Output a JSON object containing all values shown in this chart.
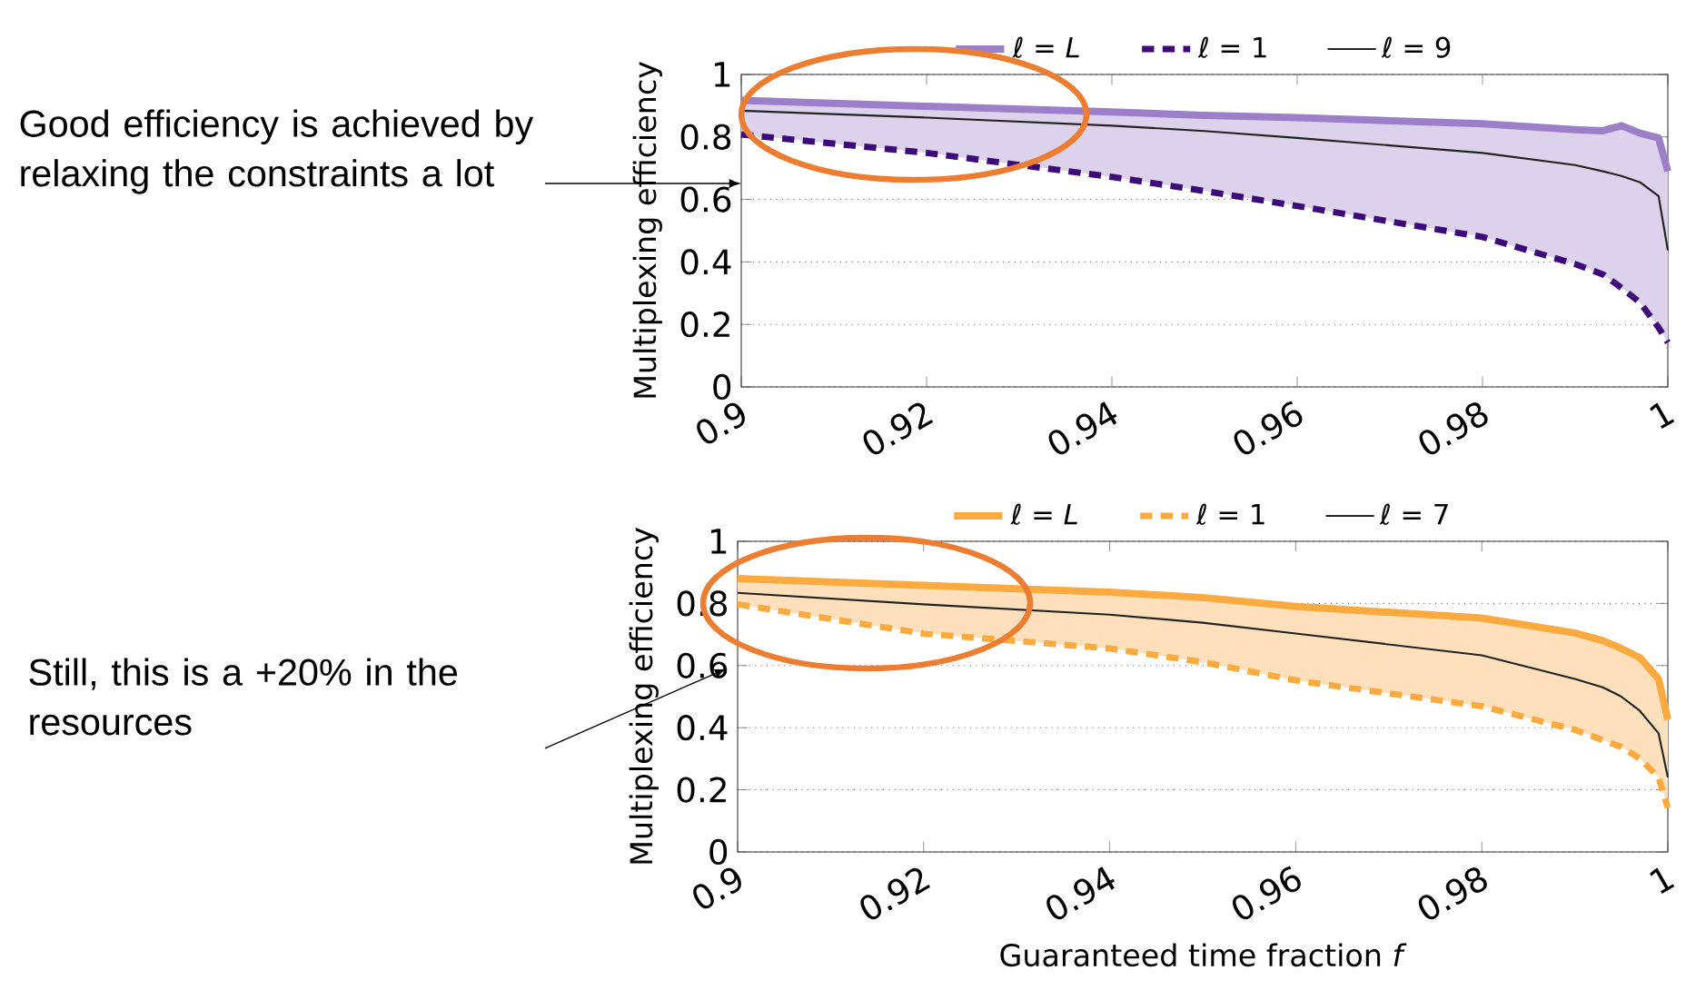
{
  "chart_data": [
    {
      "type": "line",
      "ylabel": "Multiplexing efficiency",
      "xlim": [
        0.9,
        1
      ],
      "ylim": [
        0,
        1
      ],
      "xticks": [
        0.9,
        0.92,
        0.94,
        0.96,
        0.98,
        1
      ],
      "yticks": [
        0,
        0.2,
        0.4,
        0.6,
        0.8,
        1
      ],
      "grid": "y",
      "legend": "top",
      "x": [
        0.9,
        0.92,
        0.94,
        0.95,
        0.96,
        0.98,
        0.99,
        0.993,
        0.995,
        0.997,
        0.999,
        1
      ],
      "series": [
        {
          "name": "ℓ = *L*",
          "color": "#9b7fc8",
          "line_style": "solid",
          "values": [
            0.917,
            0.898,
            0.88,
            0.869,
            0.862,
            0.842,
            0.823,
            0.82,
            0.836,
            0.812,
            0.797,
            0.69
          ],
          "upper": [
            0.917,
            0.898,
            0.88,
            0.869,
            0.862,
            0.842,
            0.823,
            0.82,
            0.836,
            0.812,
            0.797,
            0.69
          ],
          "lower": [
            0.808,
            0.749,
            0.672,
            0.627,
            0.579,
            0.48,
            0.393,
            0.36,
            0.317,
            0.27,
            0.19,
            0.142
          ]
        },
        {
          "name": "ℓ = 1",
          "color": "#3d0a7a",
          "line_style": "dashed",
          "values": [
            0.808,
            0.749,
            0.672,
            0.627,
            0.579,
            0.48,
            0.393,
            0.36,
            0.317,
            0.27,
            0.19,
            0.142
          ]
        },
        {
          "name": "ℓ = 9",
          "color": "#222222",
          "line_style": "solid",
          "values": [
            0.884,
            0.862,
            0.836,
            0.819,
            0.797,
            0.749,
            0.71,
            0.69,
            0.675,
            0.655,
            0.611,
            0.437
          ]
        }
      ],
      "annotations": [
        "Good efficiency is achieved by relaxing the constraints a lot"
      ]
    },
    {
      "type": "line",
      "xlabel": "Guaranteed time fraction *f*",
      "ylabel": "Multiplexing efficiency",
      "xlim": [
        0.9,
        1
      ],
      "ylim": [
        0,
        1
      ],
      "xticks": [
        0.9,
        0.92,
        0.94,
        0.96,
        0.98,
        1
      ],
      "yticks": [
        0,
        0.2,
        0.4,
        0.6,
        0.8,
        1
      ],
      "grid": "y",
      "legend": "top",
      "x": [
        0.9,
        0.92,
        0.94,
        0.95,
        0.96,
        0.98,
        0.99,
        0.993,
        0.995,
        0.997,
        0.999,
        1
      ],
      "series": [
        {
          "name": "ℓ = *L*",
          "color": "#fbaa3f",
          "line_style": "solid",
          "values": [
            0.88,
            0.858,
            0.836,
            0.819,
            0.79,
            0.753,
            0.705,
            0.68,
            0.655,
            0.625,
            0.557,
            0.426
          ],
          "upper": [
            0.88,
            0.858,
            0.836,
            0.819,
            0.79,
            0.753,
            0.705,
            0.68,
            0.655,
            0.625,
            0.557,
            0.426
          ],
          "lower": [
            0.797,
            0.703,
            0.655,
            0.611,
            0.552,
            0.469,
            0.393,
            0.36,
            0.338,
            0.3,
            0.24,
            0.142
          ]
        },
        {
          "name": "ℓ = 1",
          "color": "#fbaa3f",
          "line_style": "dashed",
          "values": [
            0.797,
            0.703,
            0.655,
            0.611,
            0.552,
            0.469,
            0.393,
            0.36,
            0.338,
            0.3,
            0.24,
            0.142
          ]
        },
        {
          "name": "ℓ = 7",
          "color": "#222222",
          "line_style": "solid",
          "values": [
            0.834,
            0.797,
            0.764,
            0.738,
            0.703,
            0.633,
            0.557,
            0.53,
            0.5,
            0.454,
            0.382,
            0.24
          ]
        }
      ],
      "annotations": [
        "Still, this is a +20% in the resources"
      ]
    }
  ]
}
